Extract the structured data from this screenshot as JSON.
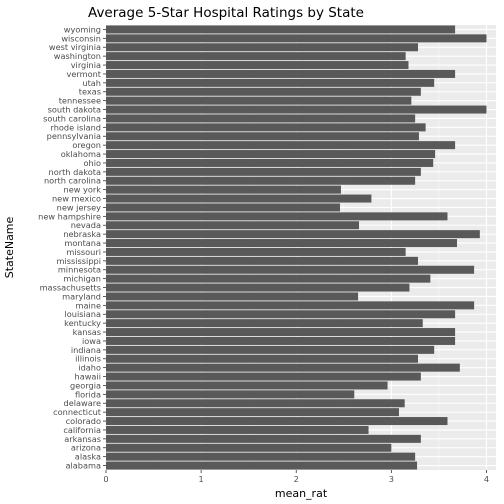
{
  "chart_data": {
    "type": "bar",
    "orientation": "horizontal",
    "title": "Average 5-Star Hospital Ratings by State",
    "xlabel": "mean_rat",
    "ylabel": "StateName",
    "xlim": [
      0,
      4.1
    ],
    "xticks": [
      0,
      1,
      2,
      3,
      4
    ],
    "grid": true,
    "bar_color": "#595959",
    "panel_color": "#ebebeb",
    "categories": [
      "alabama",
      "alaska",
      "arizona",
      "arkansas",
      "california",
      "colorado",
      "connecticut",
      "delaware",
      "florida",
      "georgia",
      "hawaii",
      "idaho",
      "illinois",
      "indiana",
      "iowa",
      "kansas",
      "kentucky",
      "louisiana",
      "maine",
      "maryland",
      "massachusetts",
      "michigan",
      "minnesota",
      "mississippi",
      "missouri",
      "montana",
      "nebraska",
      "nevada",
      "new hampshire",
      "new jersey",
      "new mexico",
      "new york",
      "north carolina",
      "north dakota",
      "ohio",
      "oklahoma",
      "oregon",
      "pennsylvania",
      "rhode island",
      "south carolina",
      "south dakota",
      "tennessee",
      "texas",
      "utah",
      "vermont",
      "virginia",
      "washington",
      "west virginia",
      "wisconsin",
      "wyoming"
    ],
    "values": [
      3.27,
      3.25,
      3.0,
      3.31,
      2.76,
      3.59,
      3.08,
      3.14,
      2.61,
      2.96,
      3.31,
      3.72,
      3.28,
      3.45,
      3.67,
      3.67,
      3.33,
      3.67,
      3.87,
      2.65,
      3.19,
      3.41,
      3.87,
      3.28,
      3.15,
      3.69,
      3.93,
      2.66,
      3.59,
      2.46,
      2.79,
      2.47,
      3.25,
      3.31,
      3.44,
      3.46,
      3.67,
      3.29,
      3.36,
      3.25,
      4.0,
      3.21,
      3.31,
      3.45,
      3.67,
      3.18,
      3.15,
      3.28,
      4.0,
      3.67
    ]
  }
}
